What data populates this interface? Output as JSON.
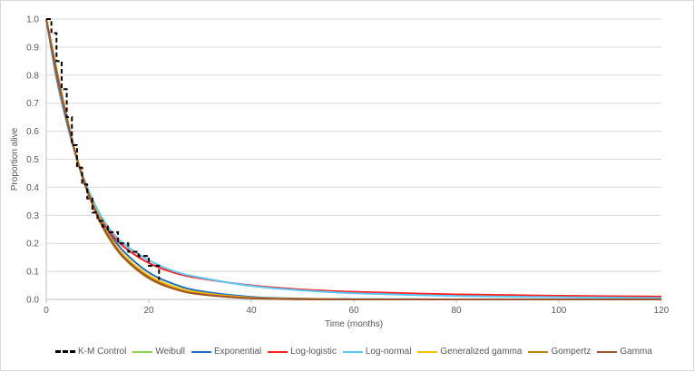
{
  "chart_data": {
    "type": "line",
    "title": "",
    "xlabel": "Time (months)",
    "ylabel": "Proportion alive",
    "xlim": [
      0,
      120
    ],
    "ylim": [
      0,
      1.0
    ],
    "xticks": [
      0,
      20,
      40,
      60,
      80,
      100,
      120
    ],
    "yticks": [
      0,
      0.1,
      0.2,
      0.3,
      0.4,
      0.5,
      0.6,
      0.7,
      0.8,
      0.9,
      1.0
    ],
    "grid": "horizontal",
    "legend_position": "bottom",
    "x": [
      0,
      2,
      4,
      6,
      8,
      10,
      12,
      15,
      20,
      25,
      30,
      40,
      50,
      60,
      80,
      100,
      120
    ],
    "series": [
      {
        "name": "K-M Control",
        "color": "#000000",
        "dashed": true,
        "points": [
          [
            0,
            1
          ],
          [
            1,
            0.95
          ],
          [
            2,
            0.85
          ],
          [
            3,
            0.75
          ],
          [
            4,
            0.65
          ],
          [
            5,
            0.55
          ],
          [
            6,
            0.47
          ],
          [
            7,
            0.41
          ],
          [
            8,
            0.36
          ],
          [
            9,
            0.31
          ],
          [
            10,
            0.28
          ],
          [
            11,
            0.26
          ],
          [
            12,
            0.24
          ],
          [
            14,
            0.2
          ],
          [
            16,
            0.17
          ],
          [
            18,
            0.155
          ],
          [
            20,
            0.12
          ],
          [
            22,
            0.07
          ]
        ]
      },
      {
        "name": "Weibull",
        "color": "#92d050",
        "values": [
          1,
          0.8,
          0.64,
          0.5,
          0.39,
          0.3,
          0.23,
          0.155,
          0.08,
          0.04,
          0.02,
          0.004,
          0.001,
          0,
          0,
          0,
          0
        ]
      },
      {
        "name": "Exponential",
        "color": "#1f6fc0",
        "values": [
          1,
          0.79,
          0.63,
          0.5,
          0.39,
          0.31,
          0.245,
          0.173,
          0.096,
          0.054,
          0.03,
          0.009,
          0.003,
          0.001,
          0,
          0,
          0
        ]
      },
      {
        "name": "Log-logistic",
        "color": "#ff2020",
        "values": [
          1,
          0.82,
          0.65,
          0.5,
          0.39,
          0.31,
          0.25,
          0.19,
          0.13,
          0.095,
          0.075,
          0.05,
          0.035,
          0.027,
          0.018,
          0.013,
          0.01
        ]
      },
      {
        "name": "Log-normal",
        "color": "#5bc8f5",
        "values": [
          1,
          0.8,
          0.63,
          0.5,
          0.4,
          0.32,
          0.26,
          0.2,
          0.14,
          0.1,
          0.078,
          0.048,
          0.032,
          0.022,
          0.012,
          0.008,
          0.005
        ]
      },
      {
        "name": "Generalized gamma",
        "color": "#ffc000",
        "values": [
          1,
          0.81,
          0.645,
          0.505,
          0.39,
          0.305,
          0.235,
          0.16,
          0.085,
          0.045,
          0.024,
          0.006,
          0.002,
          0,
          0,
          0,
          0
        ]
      },
      {
        "name": "Gompertz",
        "color": "#b8860b",
        "values": [
          1,
          0.82,
          0.65,
          0.5,
          0.385,
          0.295,
          0.225,
          0.15,
          0.075,
          0.037,
          0.018,
          0.004,
          0.001,
          0,
          0,
          0,
          0
        ]
      },
      {
        "name": "Gamma",
        "color": "#a0522d",
        "values": [
          1,
          0.805,
          0.64,
          0.5,
          0.39,
          0.3,
          0.23,
          0.153,
          0.078,
          0.038,
          0.019,
          0.004,
          0.001,
          0,
          0,
          0,
          0
        ]
      }
    ]
  }
}
